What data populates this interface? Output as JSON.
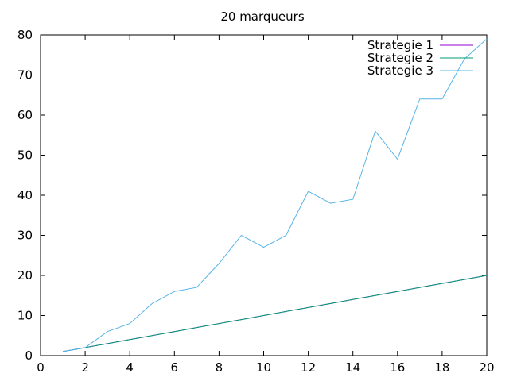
{
  "chart_data": {
    "type": "line",
    "title": "20 marqueurs",
    "xlabel": "",
    "ylabel": "",
    "xlim": [
      0,
      20
    ],
    "ylim": [
      0,
      80
    ],
    "xticks": [
      0,
      2,
      4,
      6,
      8,
      10,
      12,
      14,
      16,
      18,
      20
    ],
    "yticks": [
      0,
      10,
      20,
      30,
      40,
      50,
      60,
      70,
      80
    ],
    "grid": false,
    "legend_position": "top-right",
    "x": [
      1,
      2,
      3,
      4,
      5,
      6,
      7,
      8,
      9,
      10,
      11,
      12,
      13,
      14,
      15,
      16,
      17,
      18,
      19,
      20
    ],
    "series": [
      {
        "name": "Strategie 1",
        "color": "#9400d3",
        "values": [
          1,
          2,
          3,
          4,
          5,
          6,
          7,
          8,
          9,
          10,
          11,
          12,
          13,
          14,
          15,
          16,
          17,
          18,
          19,
          20
        ]
      },
      {
        "name": "Strategie 2",
        "color": "#009e73",
        "values": [
          1,
          2,
          3,
          4,
          5,
          6,
          7,
          8,
          9,
          10,
          11,
          12,
          13,
          14,
          15,
          16,
          17,
          18,
          19,
          20
        ]
      },
      {
        "name": "Strategie 3",
        "color": "#56b4e9",
        "values": [
          1,
          2,
          6,
          8,
          13,
          16,
          17,
          23,
          30,
          27,
          30,
          41,
          38,
          39,
          56,
          49,
          64,
          64,
          74,
          79
        ]
      }
    ]
  }
}
